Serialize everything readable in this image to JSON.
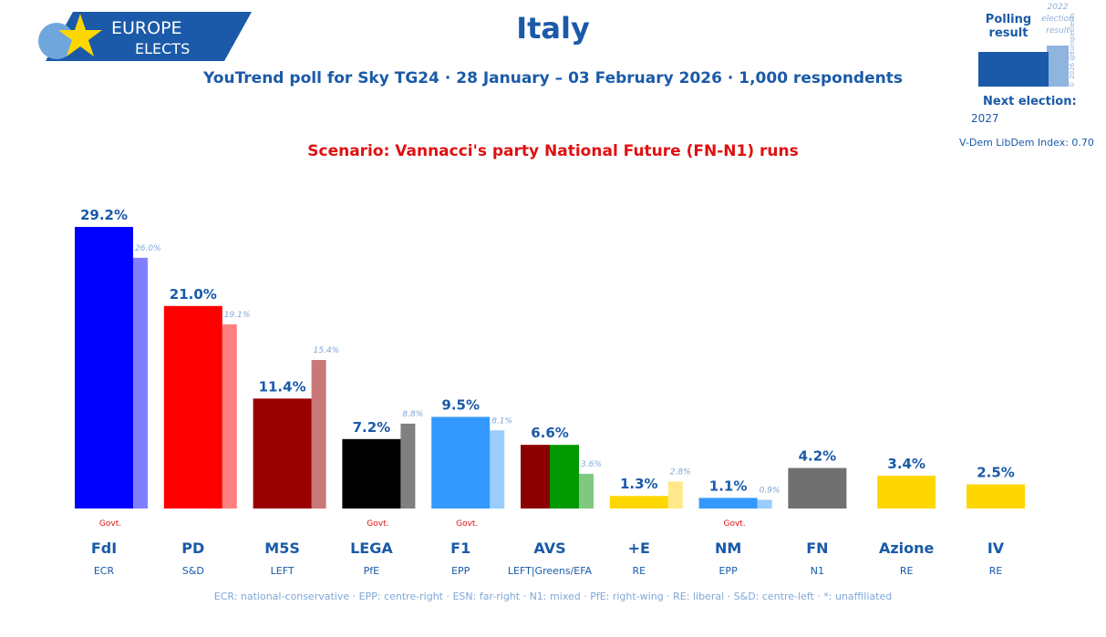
{
  "header": {
    "logo_line1": "EUROPE",
    "logo_line2": "ELECTS",
    "title": "Italy",
    "subtitle": "YouTrend poll for Sky TG24 · 28 January – 03 February 2026 · 1,000 respondents",
    "scenario": "Scenario: Vannacci's party National Future (FN-N1) runs"
  },
  "legend": {
    "polling": "Polling result",
    "prev_line1": "2022",
    "prev_line2": "election",
    "prev_line3": "result",
    "copyright": "© 2026 @EuropeElects",
    "next_election_label": "Next election:",
    "next_election": "2027",
    "vdem": "V-Dem LibDem Index: 0.70"
  },
  "footer": "ECR: national-conservative · EPP: centre-right · ESN: far-right · N1: mixed · PfE: right-wing · RE: liberal · S&D: centre-left · *: unaffiliated",
  "chart_data": {
    "type": "bar",
    "title": "Italy",
    "ylabel": "",
    "xlabel": "",
    "ylim": [
      0,
      30
    ],
    "grid": false,
    "series": [
      {
        "name": "Polling result"
      },
      {
        "name": "2022 election result"
      }
    ],
    "parties": [
      {
        "name": "FdI",
        "group": "ECR",
        "value": 29.2,
        "label": "29.2%",
        "prev": 26.0,
        "prev_label": "26.0%",
        "govt": "Govt.",
        "colors": [
          "#0000ff"
        ],
        "prev_color": "#8080ff"
      },
      {
        "name": "PD",
        "group": "S&D",
        "value": 21.0,
        "label": "21.0%",
        "prev": 19.1,
        "prev_label": "19.1%",
        "colors": [
          "#ff0000"
        ],
        "prev_color": "#ff8080"
      },
      {
        "name": "M5S",
        "group": "LEFT",
        "value": 11.4,
        "label": "11.4%",
        "prev": 15.4,
        "prev_label": "15.4%",
        "colors": [
          "#990000"
        ],
        "prev_color": "#c87878"
      },
      {
        "name": "LEGA",
        "group": "PfE",
        "value": 7.2,
        "label": "7.2%",
        "prev": 8.8,
        "prev_label": "8.8%",
        "govt": "Govt.",
        "colors": [
          "#000000"
        ],
        "prev_color": "#808080"
      },
      {
        "name": "F1",
        "group": "EPP",
        "value": 9.5,
        "label": "9.5%",
        "prev": 8.1,
        "prev_label": "8.1%",
        "govt": "Govt.",
        "colors": [
          "#3399ff"
        ],
        "prev_color": "#99ccff"
      },
      {
        "name": "AVS",
        "group": "LEFT|Greens/EFA",
        "value": 6.6,
        "label": "6.6%",
        "prev": 3.6,
        "prev_label": "3.6%",
        "colors": [
          "#8b0000",
          "#009900"
        ],
        "prev_color": "#80c880"
      },
      {
        "name": "+E",
        "group": "RE",
        "value": 1.3,
        "label": "1.3%",
        "prev": 2.8,
        "prev_label": "2.8%",
        "colors": [
          "#ffd700"
        ],
        "prev_color": "#ffe98a"
      },
      {
        "name": "NM",
        "group": "EPP",
        "value": 1.1,
        "label": "1.1%",
        "prev": 0.9,
        "prev_label": "0.9%",
        "govt": "Govt.",
        "colors": [
          "#3399ff"
        ],
        "prev_color": "#99ccff"
      },
      {
        "name": "FN",
        "group": "N1",
        "value": 4.2,
        "label": "4.2%",
        "colors": [
          "#707070"
        ]
      },
      {
        "name": "Azione",
        "group": "RE",
        "value": 3.4,
        "label": "3.4%",
        "colors": [
          "#ffd700"
        ]
      },
      {
        "name": "IV",
        "group": "RE",
        "value": 2.5,
        "label": "2.5%",
        "colors": [
          "#ffd700"
        ]
      }
    ]
  },
  "colors": {
    "accent": "#1a5aa8",
    "scenario": "#e01010",
    "footer": "#7fa8d8"
  }
}
